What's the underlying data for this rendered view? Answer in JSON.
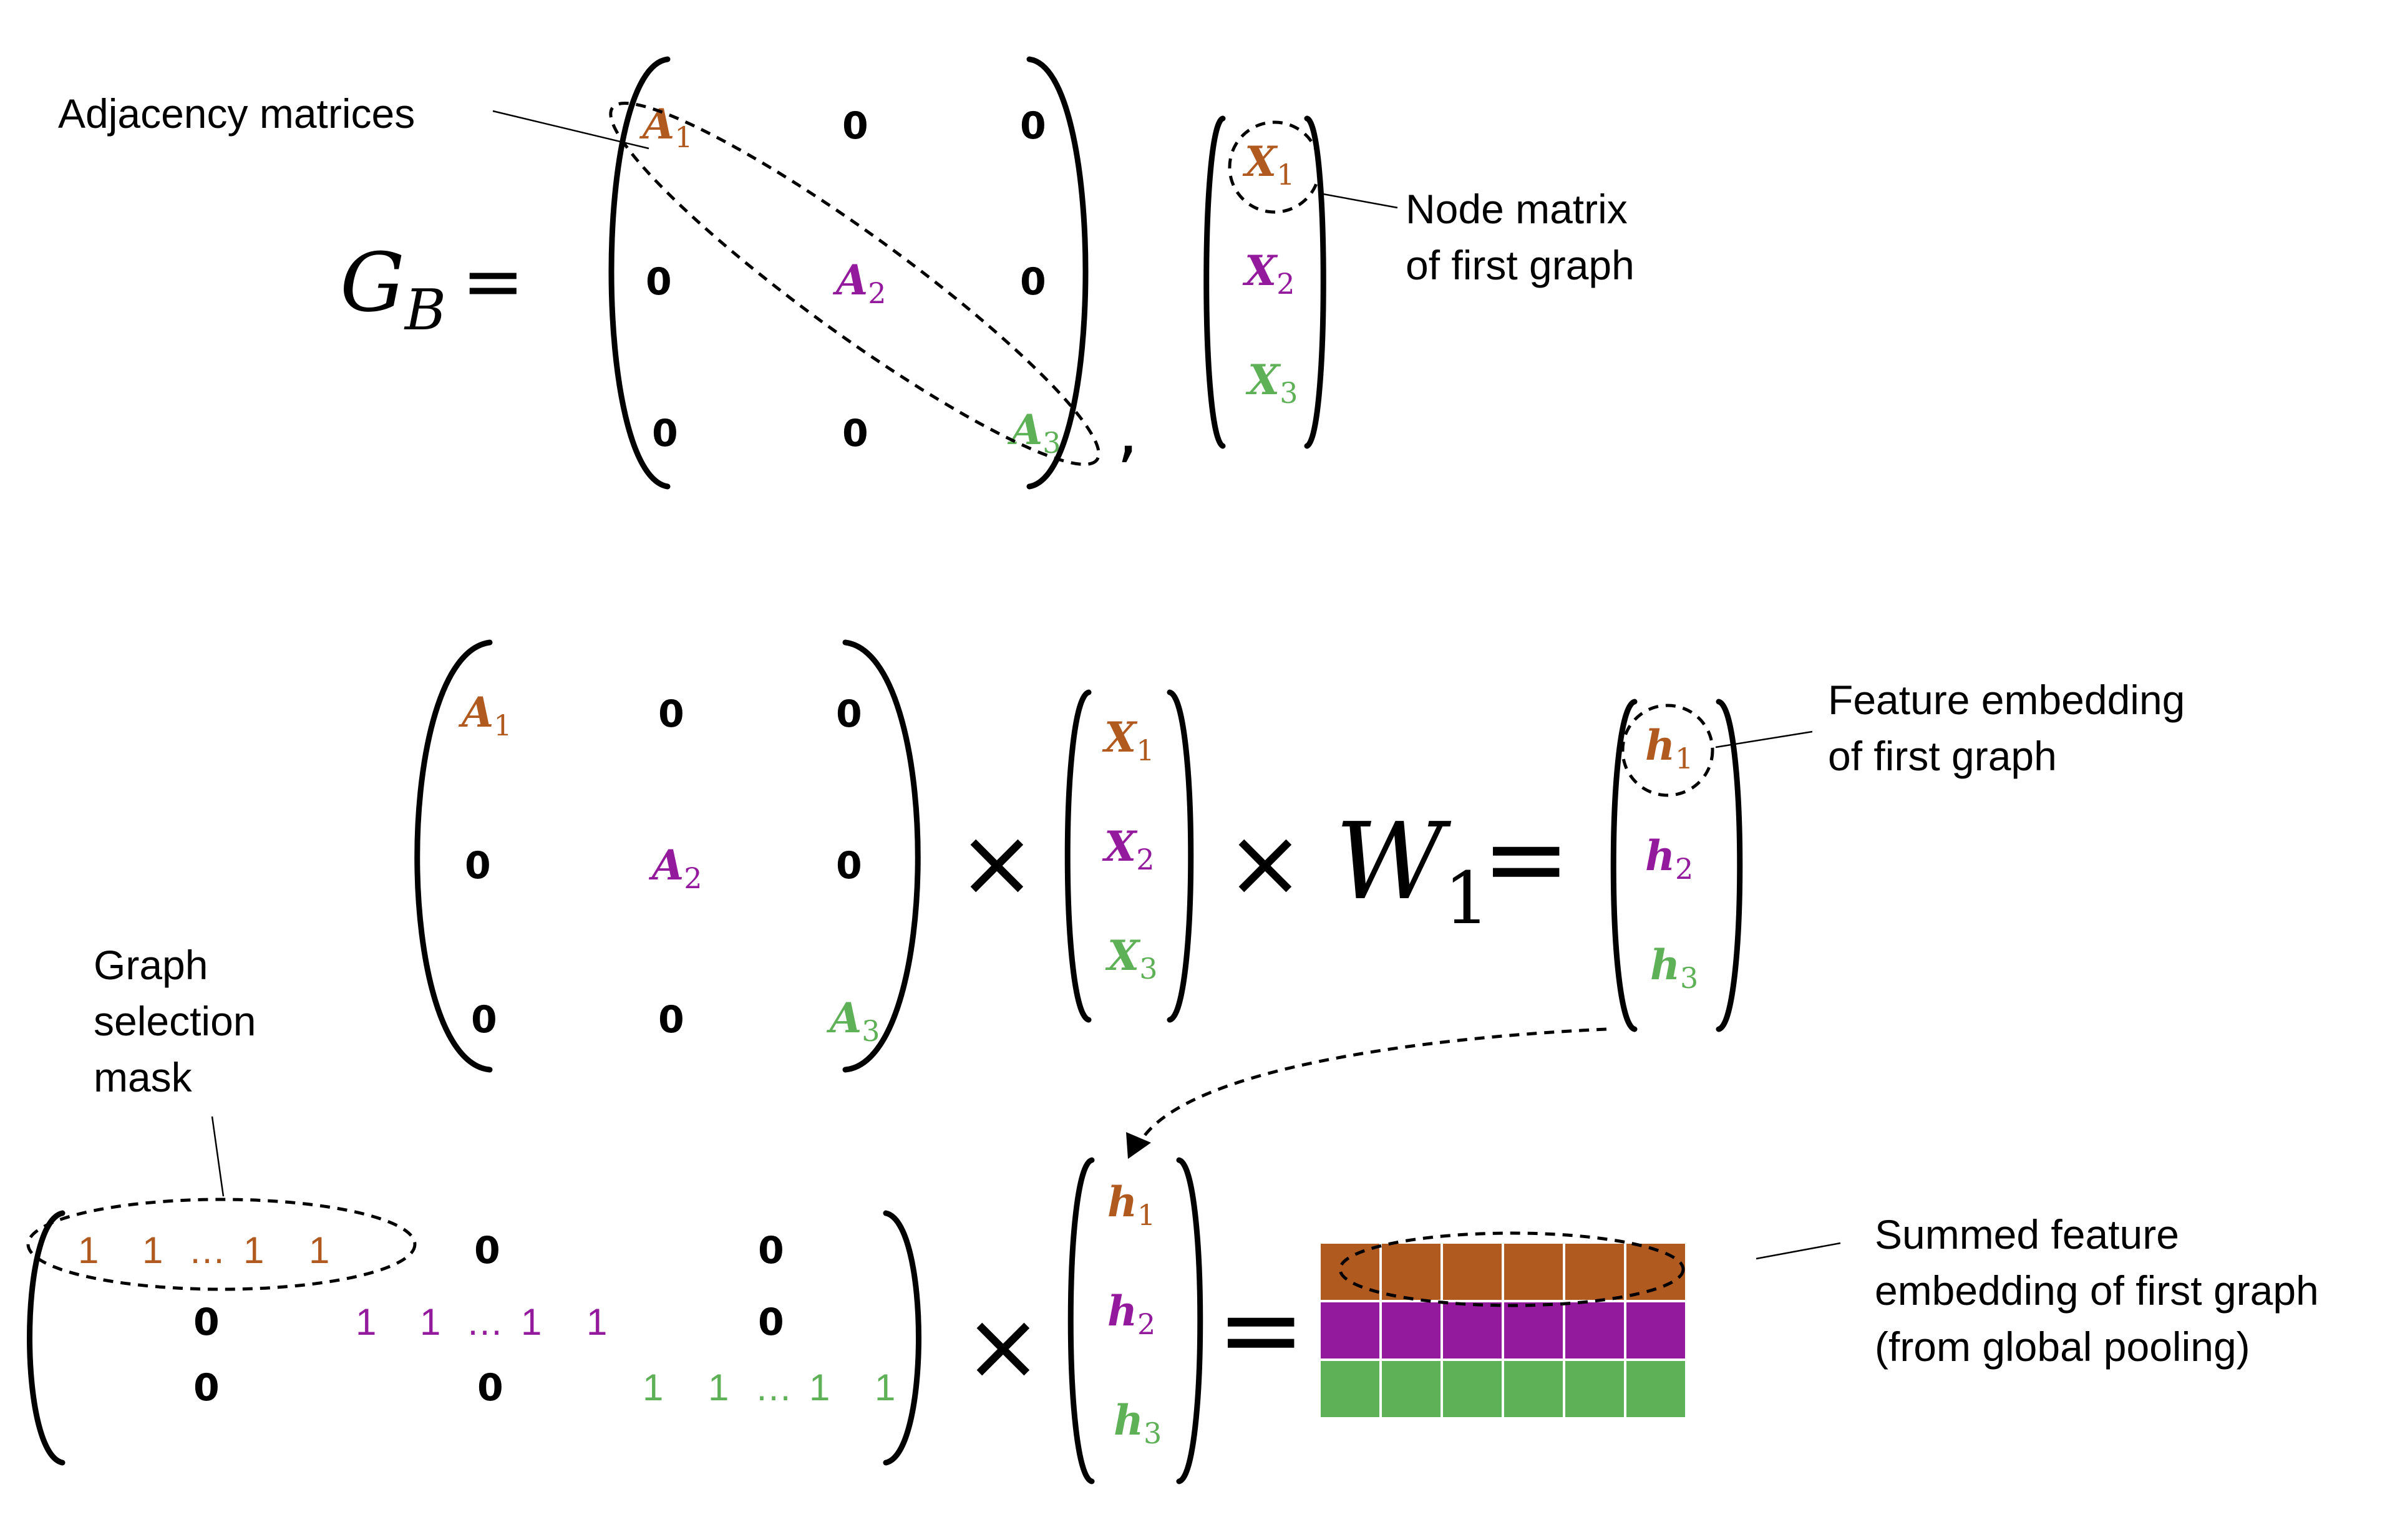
{
  "colors": {
    "graph1": "#B05A20",
    "graph2": "#941A9D",
    "graph3": "#5FB157",
    "ink": "#000000"
  },
  "labels": {
    "adjacency_matrices": "Adjacency matrices",
    "node_matrix_line1": "Node matrix",
    "node_matrix_line2": "of first graph",
    "feature_embedding_line1": "Feature embedding",
    "feature_embedding_line2": "of first graph",
    "selection_mask_line1": "Graph",
    "selection_mask_line2": "selection",
    "selection_mask_line3": "mask",
    "summed_line1": "Summed feature",
    "summed_line2": "embedding of first graph",
    "summed_line3": "(from global pooling)"
  },
  "symbols": {
    "G": "G",
    "B": "B",
    "A": "A",
    "X": "X",
    "h": "h",
    "W": "W",
    "s1": "1",
    "s2": "2",
    "s3": "3",
    "zero": "0",
    "equals": "=",
    "times": "×",
    "comma": ","
  },
  "mask_rows": [
    [
      "1",
      "1",
      "…",
      "1",
      "1"
    ],
    [
      "1",
      "1",
      "…",
      "1",
      "1"
    ],
    [
      "1",
      "1",
      "…",
      "1",
      "1"
    ]
  ],
  "pooled_embedding": {
    "rows": 3,
    "columns": 6
  }
}
